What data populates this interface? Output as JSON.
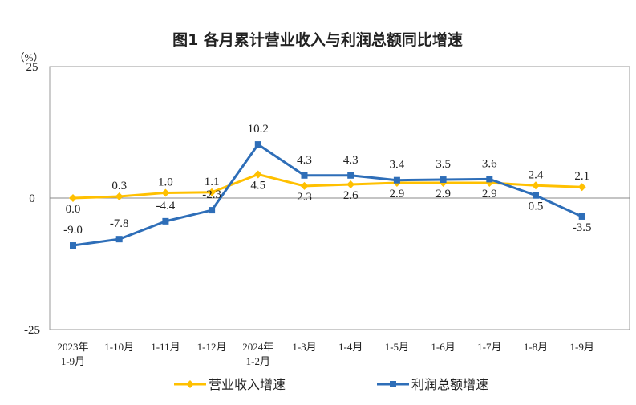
{
  "chart_data": {
    "type": "line",
    "title": "图1  各月累计营业收入与利润总额同比增速",
    "ylabel": "（%）",
    "ylim": [
      -25,
      25
    ],
    "yticks": [
      "25",
      "0",
      "-25"
    ],
    "yticks_values": [
      25,
      0,
      -25
    ],
    "categories": [
      [
        "2023年",
        "1-9月"
      ],
      [
        "1-10月"
      ],
      [
        "1-11月"
      ],
      [
        "1-12月"
      ],
      [
        "2024年",
        "1-2月"
      ],
      [
        "1-3月"
      ],
      [
        "1-4月"
      ],
      [
        "1-5月"
      ],
      [
        "1-6月"
      ],
      [
        "1-7月"
      ],
      [
        "1-8月"
      ],
      [
        "1-9月"
      ]
    ],
    "grid": false,
    "legend_position": "bottom",
    "series": [
      {
        "name": "营业收入增速",
        "color": "#FFC000",
        "marker": "diamond",
        "values": [
          0.0,
          0.3,
          1.0,
          1.1,
          4.5,
          2.3,
          2.6,
          2.9,
          2.9,
          2.9,
          2.4,
          2.1
        ],
        "labels": [
          "0.0",
          "0.3",
          "1.0",
          "1.1",
          "4.5",
          "2.3",
          "2.6",
          "2.9",
          "2.9",
          "2.9",
          "2.4",
          "2.1"
        ]
      },
      {
        "name": "利润总额增速",
        "color": "#2E6EB8",
        "marker": "square",
        "values": [
          -9.0,
          -7.8,
          -4.4,
          -2.3,
          10.2,
          4.3,
          4.3,
          3.4,
          3.5,
          3.6,
          0.5,
          -3.5
        ],
        "labels": [
          "-9.0",
          "-7.8",
          "-4.4",
          "-2.3",
          "10.2",
          "4.3",
          "4.3",
          "3.4",
          "3.5",
          "3.6",
          "0.5",
          "-3.5"
        ]
      }
    ]
  }
}
